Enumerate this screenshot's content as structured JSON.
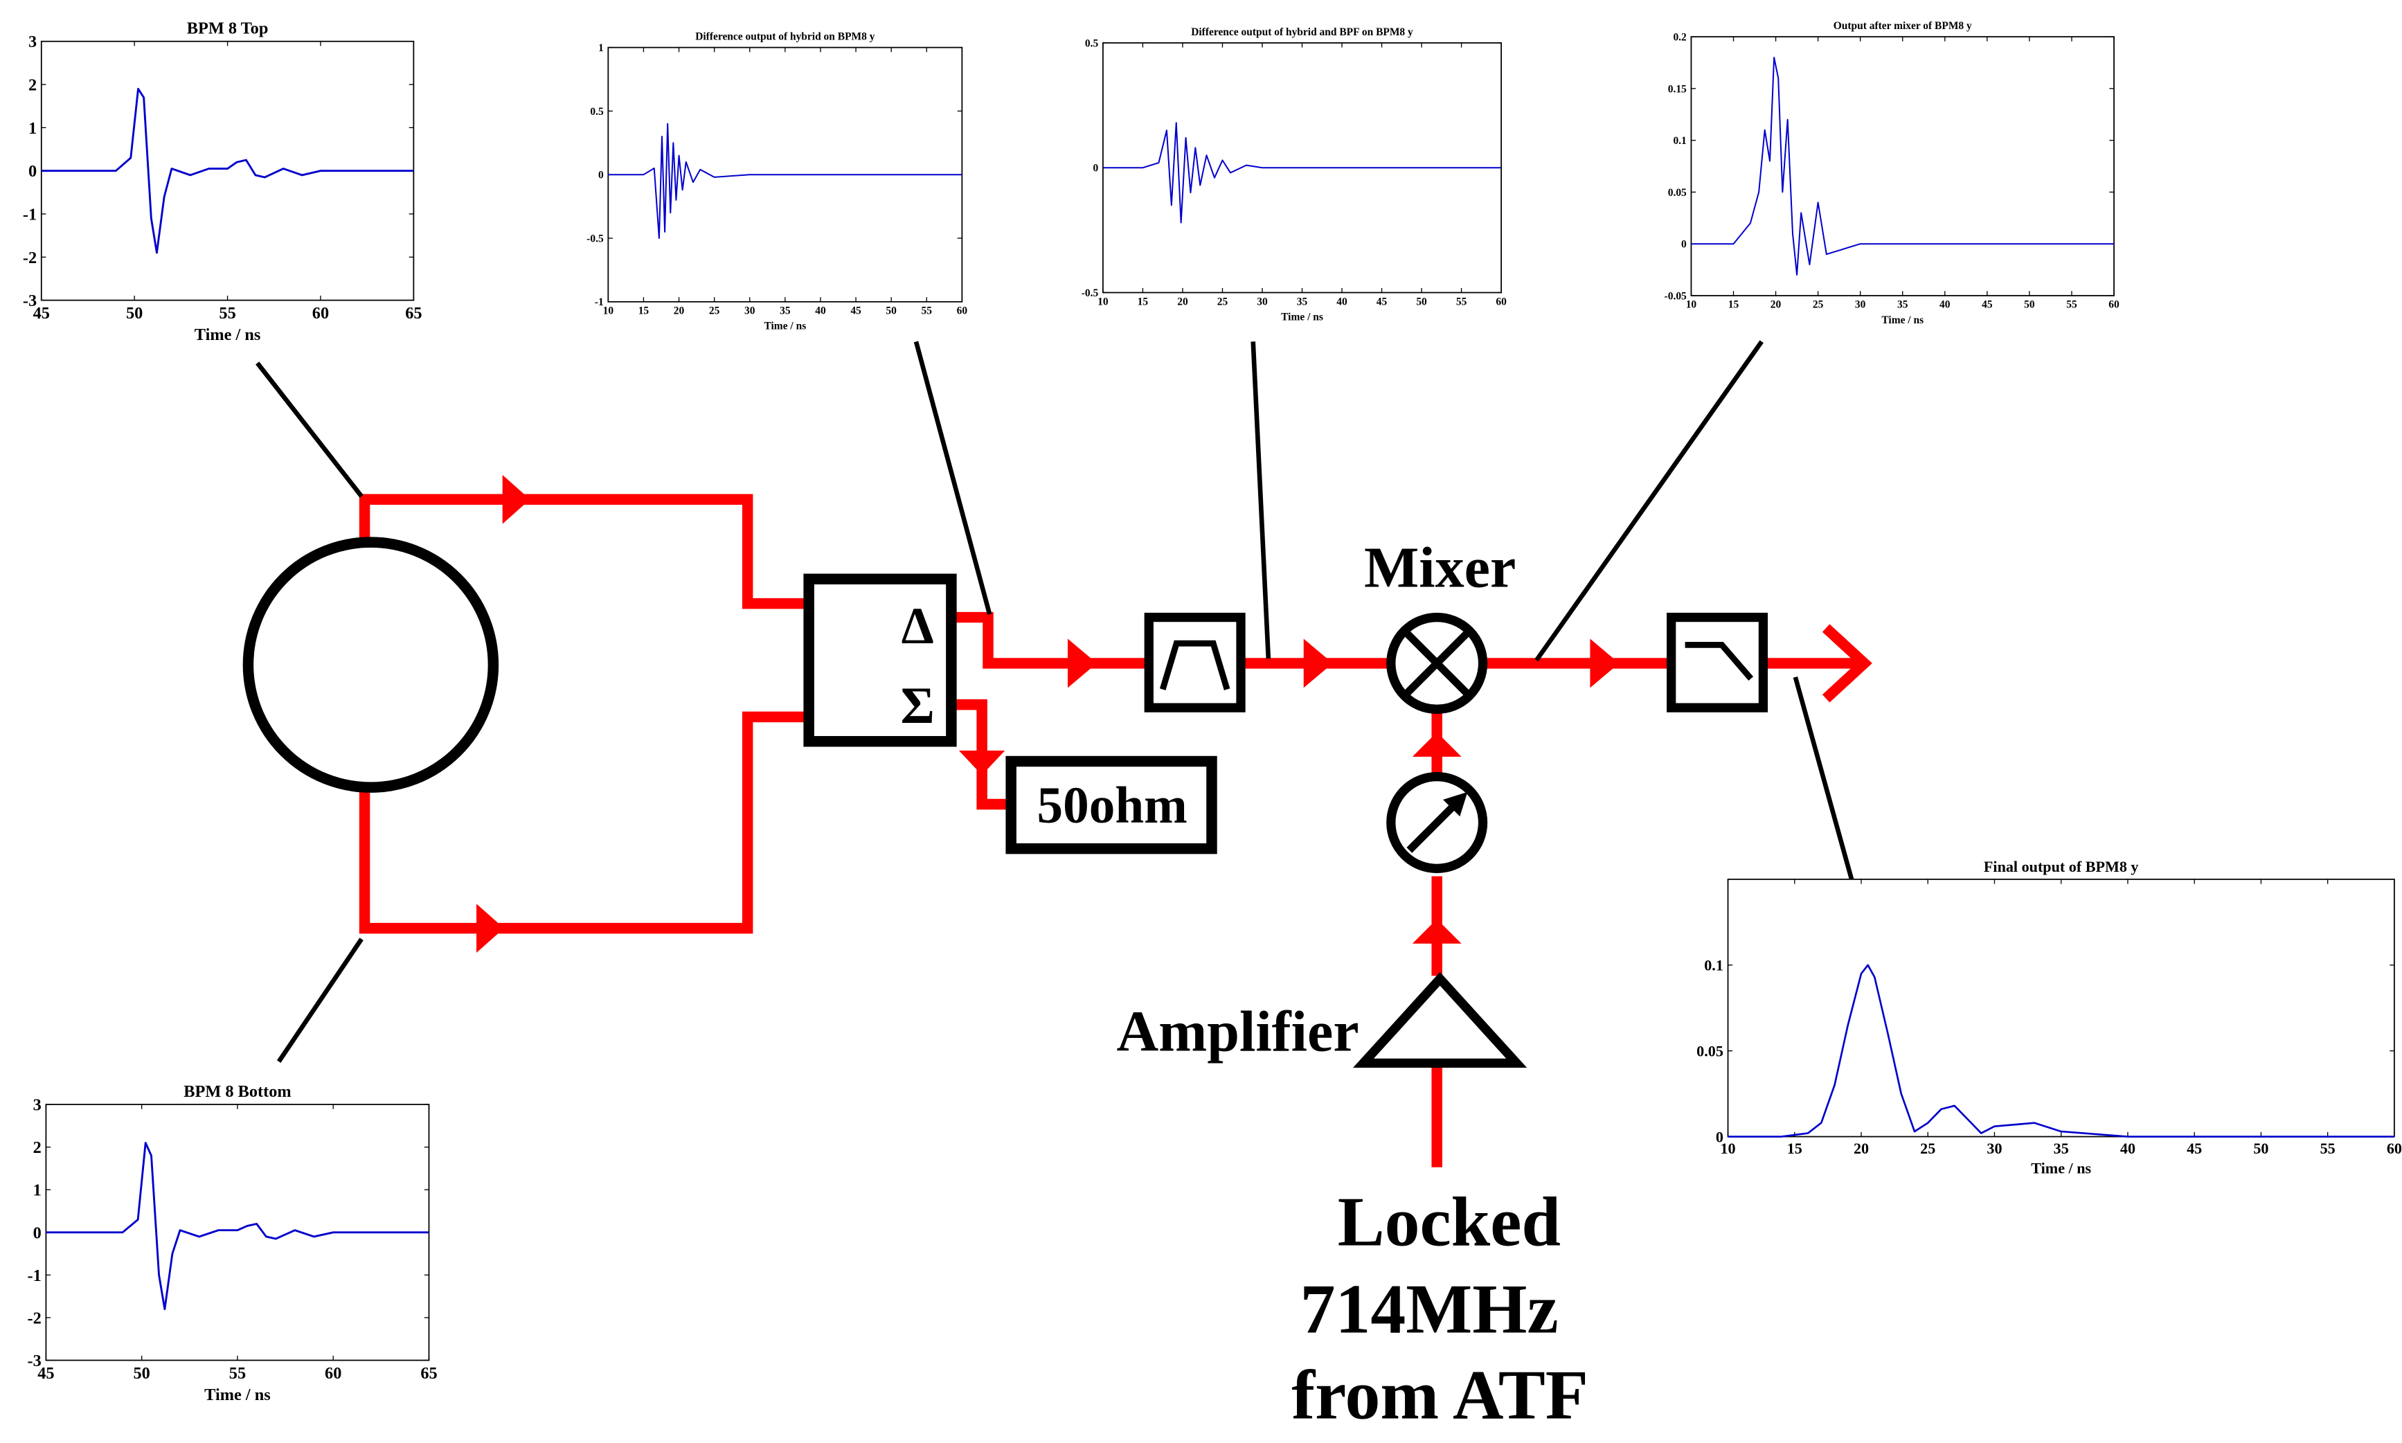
{
  "colors": {
    "signal_line": "#ff0000",
    "component": "#000000",
    "trace": "#0000cc",
    "background": "#ffffff"
  },
  "labels": {
    "delta_symbol": "Δ",
    "sigma_symbol": "Σ",
    "termination": "50ohm",
    "mixer": "Mixer",
    "amplifier": "Amplifier",
    "source_line1": "Locked",
    "source_line2": "714MHz",
    "source_line3": "from ATF"
  },
  "icons": {
    "pickup": "circle-pickup-icon",
    "hybrid": "hybrid-box-icon",
    "bandpass": "bandpass-filter-icon",
    "mixer": "mixer-cross-circle-icon",
    "phase_shifter": "phase-shifter-icon",
    "amplifier": "amplifier-triangle-icon",
    "lowpass": "lowpass-filter-icon"
  },
  "plots": {
    "top": {
      "title": "BPM 8 Top",
      "xlabel": "Time / ns",
      "xticks": [
        "45",
        "50",
        "55",
        "60",
        "65"
      ],
      "yticks": [
        "3",
        "2",
        "1",
        "0",
        "-1",
        "-2",
        "-3"
      ]
    },
    "bottom": {
      "title": "BPM 8 Bottom",
      "xlabel": "Time / ns",
      "xticks": [
        "45",
        "50",
        "55",
        "60",
        "65"
      ],
      "yticks": [
        "3",
        "2",
        "1",
        "0",
        "-1",
        "-2",
        "-3"
      ]
    },
    "hybrid": {
      "title": "Difference output of hybrid on BPM8 y",
      "xlabel": "Time / ns",
      "xticks": [
        "10",
        "15",
        "20",
        "25",
        "30",
        "35",
        "40",
        "45",
        "50",
        "55",
        "60"
      ],
      "yticks": [
        "1",
        "0.5",
        "0",
        "-0.5",
        "-1"
      ]
    },
    "bpf": {
      "title": "Difference output of hybrid and BPF on BPM8 y",
      "xlabel": "Time / ns",
      "xticks": [
        "10",
        "15",
        "20",
        "25",
        "30",
        "35",
        "40",
        "45",
        "50",
        "55",
        "60"
      ],
      "yticks": [
        "0.5",
        "0",
        "-0.5"
      ]
    },
    "mixer": {
      "title": "Output after mixer of BPM8 y",
      "xlabel": "Time / ns",
      "xticks": [
        "10",
        "15",
        "20",
        "25",
        "30",
        "35",
        "40",
        "45",
        "50",
        "55",
        "60"
      ],
      "yticks": [
        "0.2",
        "0.15",
        "0.1",
        "0.05",
        "0",
        "-0.05"
      ]
    },
    "final": {
      "title": "Final output of BPM8 y",
      "xlabel": "Time / ns",
      "xticks": [
        "10",
        "15",
        "20",
        "25",
        "30",
        "35",
        "40",
        "45",
        "50",
        "55",
        "60"
      ],
      "yticks": [
        "0.1",
        "0.05",
        "0"
      ]
    }
  },
  "chart_data": [
    {
      "type": "line",
      "title": "BPM 8 Top",
      "xlabel": "Time / ns",
      "ylabel": "",
      "xlim": [
        45,
        65
      ],
      "ylim": [
        -3,
        3
      ],
      "x": [
        45,
        49,
        49.8,
        50.2,
        50.5,
        50.9,
        51.2,
        51.6,
        52,
        53,
        54,
        55,
        55.5,
        56,
        56.5,
        57,
        58,
        59,
        60,
        62,
        65
      ],
      "y": [
        0,
        0,
        0.3,
        1.9,
        1.7,
        -1.1,
        -1.9,
        -0.6,
        0.05,
        -0.1,
        0.05,
        0.05,
        0.2,
        0.25,
        -0.1,
        -0.15,
        0.05,
        -0.1,
        0,
        0,
        0
      ]
    },
    {
      "type": "line",
      "title": "BPM 8 Bottom",
      "xlabel": "Time / ns",
      "ylabel": "",
      "xlim": [
        45,
        65
      ],
      "ylim": [
        -3,
        3
      ],
      "x": [
        45,
        49,
        49.8,
        50.2,
        50.5,
        50.9,
        51.2,
        51.6,
        52,
        53,
        54,
        55,
        55.5,
        56,
        56.5,
        57,
        58,
        59,
        60,
        62,
        65
      ],
      "y": [
        0,
        0,
        0.3,
        2.1,
        1.8,
        -1.0,
        -1.8,
        -0.5,
        0.05,
        -0.1,
        0.05,
        0.05,
        0.15,
        0.2,
        -0.1,
        -0.15,
        0.05,
        -0.1,
        0,
        0,
        0
      ]
    },
    {
      "type": "line",
      "title": "Difference output of hybrid on BPM8 y",
      "xlabel": "Time / ns",
      "ylabel": "",
      "xlim": [
        10,
        60
      ],
      "ylim": [
        -1,
        1
      ],
      "x": [
        10,
        15,
        16.5,
        17.2,
        17.6,
        18,
        18.4,
        18.8,
        19.2,
        19.6,
        20,
        20.5,
        21,
        22,
        23,
        25,
        30,
        40,
        50,
        60
      ],
      "y": [
        0,
        0,
        0.05,
        -0.5,
        0.3,
        -0.45,
        0.4,
        -0.3,
        0.25,
        -0.2,
        0.15,
        -0.12,
        0.1,
        -0.06,
        0.04,
        -0.02,
        0,
        0,
        0,
        0
      ]
    },
    {
      "type": "line",
      "title": "Difference output of hybrid and BPF on BPM8 y",
      "xlabel": "Time / ns",
      "ylabel": "",
      "xlim": [
        10,
        60
      ],
      "ylim": [
        -0.5,
        0.5
      ],
      "x": [
        10,
        15,
        17,
        18,
        18.6,
        19.2,
        19.8,
        20.4,
        21,
        21.6,
        22.2,
        23,
        24,
        25,
        26,
        28,
        30,
        40,
        50,
        60
      ],
      "y": [
        0,
        0,
        0.02,
        0.15,
        -0.15,
        0.18,
        -0.22,
        0.12,
        -0.1,
        0.08,
        -0.07,
        0.05,
        -0.04,
        0.03,
        -0.02,
        0.01,
        0,
        0,
        0,
        0
      ]
    },
    {
      "type": "line",
      "title": "Output after mixer of BPM8 y",
      "xlabel": "Time / ns",
      "ylabel": "",
      "xlim": [
        10,
        60
      ],
      "ylim": [
        -0.05,
        0.2
      ],
      "x": [
        10,
        15,
        17,
        18,
        18.7,
        19.3,
        19.8,
        20.3,
        20.8,
        21.4,
        22,
        22.5,
        23,
        24,
        25,
        26,
        30,
        40,
        50,
        60
      ],
      "y": [
        0,
        0,
        0.02,
        0.05,
        0.11,
        0.08,
        0.18,
        0.16,
        0.05,
        0.12,
        0.01,
        -0.03,
        0.03,
        -0.02,
        0.04,
        -0.01,
        0,
        0,
        0,
        0
      ]
    },
    {
      "type": "line",
      "title": "Final output of BPM8 y",
      "xlabel": "Time / ns",
      "ylabel": "",
      "xlim": [
        10,
        60
      ],
      "ylim": [
        0,
        0.15
      ],
      "x": [
        10,
        14,
        16,
        17,
        18,
        19,
        20,
        20.5,
        21,
        22,
        23,
        24,
        25,
        26,
        27,
        28,
        29,
        30,
        33,
        35,
        40,
        50,
        60
      ],
      "y": [
        0,
        0,
        0.002,
        0.008,
        0.03,
        0.065,
        0.095,
        0.1,
        0.093,
        0.06,
        0.025,
        0.003,
        0.008,
        0.016,
        0.018,
        0.01,
        0.002,
        0.006,
        0.008,
        0.003,
        0,
        0,
        0
      ]
    }
  ]
}
